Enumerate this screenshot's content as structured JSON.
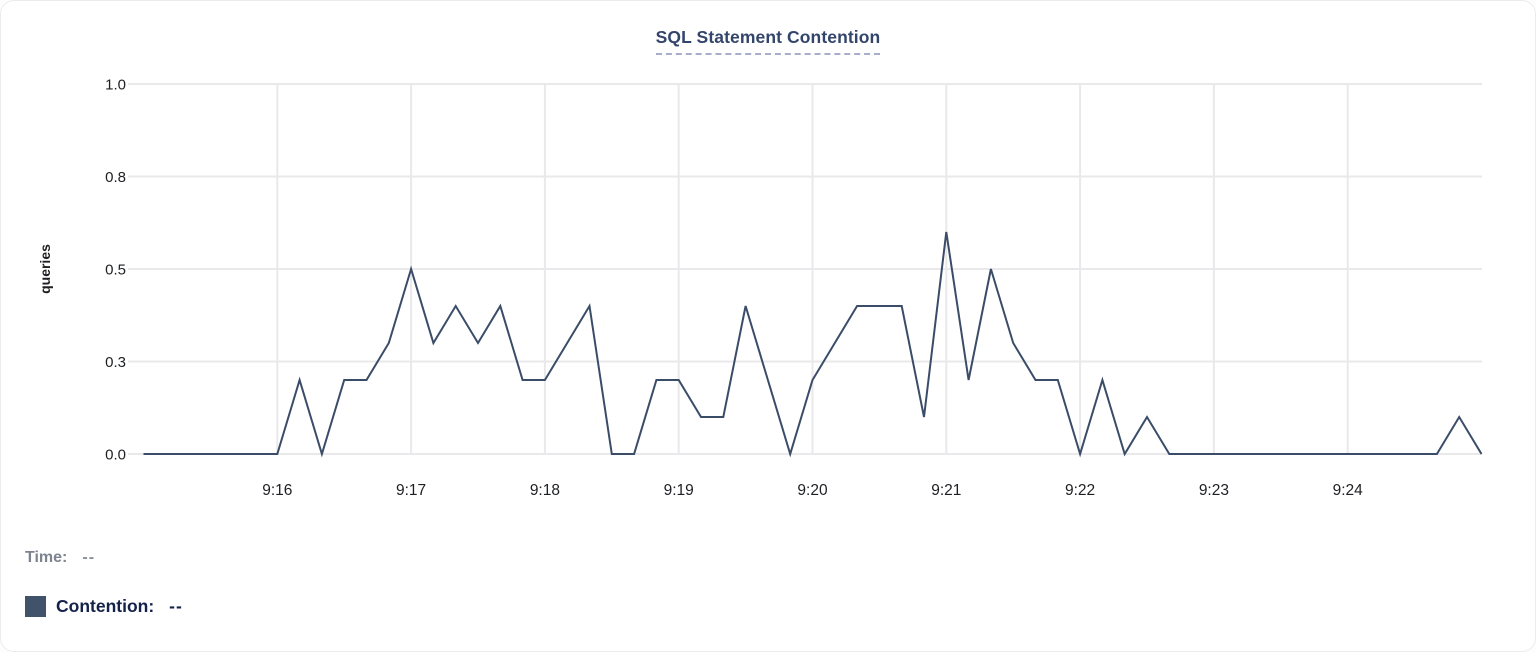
{
  "title": "SQL Statement Contention",
  "colors": {
    "title": "#33456b",
    "title_underline": "#a7aecb",
    "line": "#3a4c68",
    "grid": "#e9e9eb",
    "axis_text": "#1d1f23",
    "time_label": "#7d8490",
    "time_value": "#8a8f99",
    "contention_label": "#14224a",
    "legend_swatch": "#41526b",
    "card_background": "#ffffff"
  },
  "tooltip": {
    "time_label": "Time:",
    "time_value": "--",
    "contention_label": "Contention:",
    "contention_value": "--"
  },
  "chart_data": {
    "type": "line",
    "title": "SQL Statement Contention",
    "xlabel": "",
    "ylabel": "queries",
    "ylim": [
      0,
      1
    ],
    "grid": true,
    "legend_position": "bottom-left",
    "yticks": [
      {
        "label": "0.0",
        "value": 0
      },
      {
        "label": "0.3",
        "value": 0.25
      },
      {
        "label": "0.5",
        "value": 0.5
      },
      {
        "label": "0.8",
        "value": 0.75
      },
      {
        "label": "1.0",
        "value": 1.0
      }
    ],
    "xticks": [
      {
        "label": "9:16",
        "offset_s": 60
      },
      {
        "label": "9:17",
        "offset_s": 120
      },
      {
        "label": "9:18",
        "offset_s": 180
      },
      {
        "label": "9:19",
        "offset_s": 240
      },
      {
        "label": "9:20",
        "offset_s": 300
      },
      {
        "label": "9:21",
        "offset_s": 360
      },
      {
        "label": "9:22",
        "offset_s": 420
      },
      {
        "label": "9:23",
        "offset_s": 480
      },
      {
        "label": "9:24",
        "offset_s": 540
      }
    ],
    "x_start": "9:15:00",
    "x_end": "9:25:00",
    "sample_interval_s": 10,
    "series": [
      {
        "name": "Contention",
        "color": "#3a4c68",
        "values": [
          0,
          0,
          0,
          0,
          0,
          0,
          0,
          0.2,
          0,
          0.2,
          0.2,
          0.3,
          0.5,
          0.3,
          0.4,
          0.3,
          0.4,
          0.2,
          0.2,
          0.3,
          0.4,
          0,
          0,
          0.2,
          0.2,
          0.1,
          0.1,
          0.4,
          0.2,
          0,
          0.2,
          0.3,
          0.4,
          0.4,
          0.4,
          0.1,
          0.6,
          0.2,
          0.5,
          0.3,
          0.2,
          0.2,
          0,
          0.2,
          0,
          0.1,
          0,
          0,
          0,
          0,
          0,
          0,
          0,
          0,
          0,
          0,
          0,
          0,
          0,
          0.1,
          0
        ]
      }
    ]
  }
}
